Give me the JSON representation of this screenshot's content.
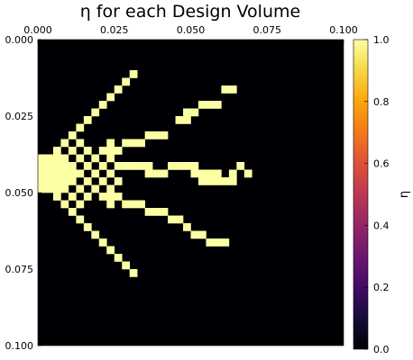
{
  "chart_data": {
    "type": "heatmap",
    "title": "η for each Design Volume",
    "x_ticks": [
      "0.000",
      "0.025",
      "0.050",
      "0.075",
      "0.100"
    ],
    "y_ticks": [
      "0.000",
      "0.025",
      "0.050",
      "0.075",
      "0.100"
    ],
    "xlim": [
      0,
      0.1
    ],
    "ylim": [
      0,
      0.1
    ],
    "x_axis_position": "top",
    "y_axis_direction": "downward",
    "grid_size": [
      40,
      40
    ],
    "colormap": "inferno",
    "colorbar": {
      "label": "η",
      "ticks": [
        "0.0",
        "0.2",
        "0.4",
        "0.6",
        "0.8",
        "1.0"
      ],
      "range": [
        0,
        1
      ]
    },
    "cell_value_description": "Design cells with η = 1 listed as [column, row] on a 40x40 grid; all other cells are η = 0",
    "cells_eta_1": [
      [
        12,
        4
      ],
      [
        11,
        5
      ],
      [
        10,
        6
      ],
      [
        9,
        7
      ],
      [
        8,
        8
      ],
      [
        7,
        9
      ],
      [
        6,
        10
      ],
      [
        5,
        11
      ],
      [
        24,
        6
      ],
      [
        25,
        6
      ],
      [
        21,
        8
      ],
      [
        22,
        8
      ],
      [
        23,
        8
      ],
      [
        19,
        9
      ],
      [
        20,
        9
      ],
      [
        18,
        10
      ],
      [
        19,
        10
      ],
      [
        14,
        12
      ],
      [
        15,
        12
      ],
      [
        16,
        12
      ],
      [
        11,
        13
      ],
      [
        12,
        13
      ],
      [
        13,
        13
      ],
      [
        4,
        12
      ],
      [
        3,
        13
      ],
      [
        5,
        13
      ],
      [
        9,
        13
      ],
      [
        2,
        14
      ],
      [
        4,
        14
      ],
      [
        6,
        14
      ],
      [
        8,
        14
      ],
      [
        9,
        14
      ],
      [
        10,
        14
      ],
      [
        0,
        15
      ],
      [
        1,
        15
      ],
      [
        2,
        15
      ],
      [
        3,
        15
      ],
      [
        5,
        15
      ],
      [
        7,
        15
      ],
      [
        9,
        15
      ],
      [
        0,
        16
      ],
      [
        1,
        16
      ],
      [
        2,
        16
      ],
      [
        3,
        16
      ],
      [
        4,
        16
      ],
      [
        6,
        16
      ],
      [
        8,
        16
      ],
      [
        10,
        16
      ],
      [
        11,
        16
      ],
      [
        12,
        16
      ],
      [
        13,
        16
      ],
      [
        14,
        16
      ],
      [
        17,
        16
      ],
      [
        18,
        16
      ],
      [
        19,
        16
      ],
      [
        20,
        16
      ],
      [
        26,
        16
      ],
      [
        0,
        17
      ],
      [
        1,
        17
      ],
      [
        2,
        17
      ],
      [
        3,
        17
      ],
      [
        4,
        17
      ],
      [
        5,
        17
      ],
      [
        7,
        17
      ],
      [
        9,
        17
      ],
      [
        14,
        17
      ],
      [
        15,
        17
      ],
      [
        16,
        17
      ],
      [
        20,
        17
      ],
      [
        21,
        17
      ],
      [
        22,
        17
      ],
      [
        23,
        17
      ],
      [
        25,
        17
      ],
      [
        27,
        17
      ],
      [
        0,
        18
      ],
      [
        1,
        18
      ],
      [
        2,
        18
      ],
      [
        3,
        18
      ],
      [
        4,
        18
      ],
      [
        6,
        18
      ],
      [
        8,
        18
      ],
      [
        10,
        18
      ],
      [
        21,
        18
      ],
      [
        22,
        18
      ],
      [
        23,
        18
      ],
      [
        24,
        18
      ],
      [
        25,
        18
      ],
      [
        0,
        19
      ],
      [
        1,
        19
      ],
      [
        2,
        19
      ],
      [
        3,
        19
      ],
      [
        5,
        19
      ],
      [
        7,
        19
      ],
      [
        9,
        19
      ],
      [
        2,
        20
      ],
      [
        4,
        20
      ],
      [
        6,
        20
      ],
      [
        8,
        20
      ],
      [
        9,
        20
      ],
      [
        10,
        20
      ],
      [
        3,
        21
      ],
      [
        5,
        21
      ],
      [
        9,
        21
      ],
      [
        11,
        21
      ],
      [
        12,
        21
      ],
      [
        13,
        21
      ],
      [
        4,
        22
      ],
      [
        14,
        22
      ],
      [
        15,
        22
      ],
      [
        16,
        22
      ],
      [
        5,
        23
      ],
      [
        17,
        23
      ],
      [
        18,
        23
      ],
      [
        6,
        24
      ],
      [
        19,
        24
      ],
      [
        7,
        25
      ],
      [
        20,
        25
      ],
      [
        21,
        25
      ],
      [
        8,
        26
      ],
      [
        22,
        26
      ],
      [
        23,
        26
      ],
      [
        24,
        26
      ],
      [
        9,
        27
      ],
      [
        10,
        28
      ],
      [
        11,
        29
      ],
      [
        12,
        30
      ]
    ]
  }
}
